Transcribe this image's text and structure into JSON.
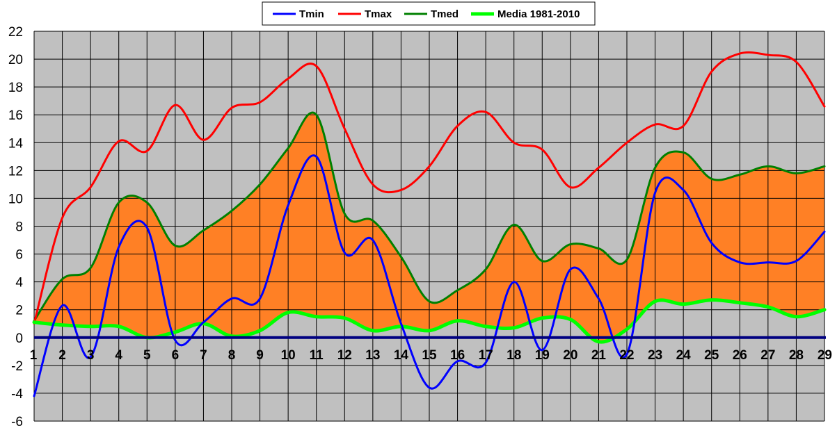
{
  "chart_data": {
    "type": "line",
    "title": "",
    "xlabel": "",
    "ylabel": "",
    "x": [
      1,
      2,
      3,
      4,
      5,
      6,
      7,
      8,
      9,
      10,
      11,
      12,
      13,
      14,
      15,
      16,
      17,
      18,
      19,
      20,
      21,
      22,
      23,
      24,
      25,
      26,
      27,
      28,
      29
    ],
    "ylim": [
      -6,
      22
    ],
    "yticks": [
      -6,
      -4,
      -2,
      0,
      2,
      4,
      6,
      8,
      10,
      12,
      14,
      16,
      18,
      20,
      22
    ],
    "grid": true,
    "legend_position": "top-center",
    "background_color": "#C0C0C0",
    "fill_color": "#FF8025",
    "zero_line_color": "#000080",
    "series": [
      {
        "name": "Tmin",
        "color": "#0000FF",
        "width": 3,
        "values": [
          -4.2,
          2.3,
          -1.4,
          6.5,
          7.9,
          -0.2,
          1.1,
          2.8,
          2.8,
          9.5,
          13.0,
          6.1,
          7.0,
          1.0,
          -3.6,
          -1.7,
          -1.8,
          4.0,
          -0.9,
          4.9,
          2.8,
          -1.2,
          10.4,
          10.6,
          6.8,
          5.4,
          5.4,
          5.5,
          7.6
        ]
      },
      {
        "name": "Tmax",
        "color": "#FF0000",
        "width": 3,
        "values": [
          1.0,
          8.6,
          10.8,
          14.1,
          13.4,
          16.7,
          14.2,
          16.5,
          16.9,
          18.6,
          19.5,
          15.0,
          11.0,
          10.6,
          12.3,
          15.2,
          16.2,
          14.0,
          13.5,
          10.8,
          12.2,
          14.0,
          15.3,
          15.2,
          19.1,
          20.4,
          20.3,
          19.8,
          16.6
        ]
      },
      {
        "name": "Tmed",
        "color": "#008000",
        "width": 3,
        "values": [
          1.2,
          4.2,
          5.0,
          9.7,
          9.7,
          6.6,
          7.7,
          9.1,
          11.0,
          13.6,
          16.0,
          8.9,
          8.4,
          5.8,
          2.6,
          3.4,
          4.9,
          8.1,
          5.5,
          6.7,
          6.4,
          5.6,
          12.2,
          13.3,
          11.4,
          11.7,
          12.3,
          11.8,
          12.3
        ]
      },
      {
        "name": "Media 1981-2010",
        "color": "#00FF00",
        "width": 5,
        "values": [
          1.1,
          0.9,
          0.8,
          0.8,
          0.0,
          0.4,
          1.0,
          0.1,
          0.5,
          1.8,
          1.5,
          1.4,
          0.5,
          0.8,
          0.5,
          1.2,
          0.8,
          0.7,
          1.4,
          1.3,
          -0.3,
          0.6,
          2.6,
          2.4,
          2.7,
          2.5,
          2.2,
          1.5,
          2.0
        ]
      }
    ]
  }
}
